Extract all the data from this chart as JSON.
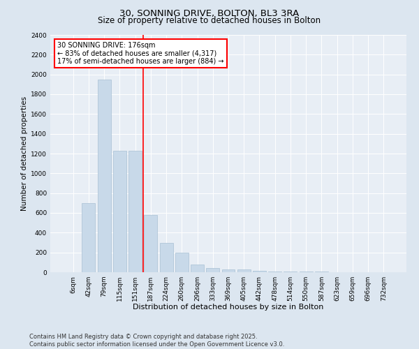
{
  "title": "30, SONNING DRIVE, BOLTON, BL3 3RA",
  "subtitle": "Size of property relative to detached houses in Bolton",
  "xlabel": "Distribution of detached houses by size in Bolton",
  "ylabel": "Number of detached properties",
  "categories": [
    "6sqm",
    "42sqm",
    "79sqm",
    "115sqm",
    "151sqm",
    "187sqm",
    "224sqm",
    "260sqm",
    "296sqm",
    "333sqm",
    "369sqm",
    "405sqm",
    "442sqm",
    "478sqm",
    "514sqm",
    "550sqm",
    "587sqm",
    "623sqm",
    "659sqm",
    "696sqm",
    "732sqm"
  ],
  "values": [
    0,
    700,
    1950,
    1230,
    1230,
    580,
    300,
    200,
    80,
    45,
    30,
    25,
    15,
    10,
    8,
    5,
    4,
    2,
    2,
    1,
    0
  ],
  "bar_color": "#c8d9e9",
  "bar_edge_color": "#a8c0d4",
  "vline_x": 5,
  "vline_color": "red",
  "annotation_text": "30 SONNING DRIVE: 176sqm\n← 83% of detached houses are smaller (4,317)\n17% of semi-detached houses are larger (884) →",
  "annotation_box_color": "white",
  "annotation_box_edge_color": "red",
  "ylim": [
    0,
    2400
  ],
  "yticks": [
    0,
    200,
    400,
    600,
    800,
    1000,
    1200,
    1400,
    1600,
    1800,
    2000,
    2200,
    2400
  ],
  "footnote": "Contains HM Land Registry data © Crown copyright and database right 2025.\nContains public sector information licensed under the Open Government Licence v3.0.",
  "background_color": "#dce6f0",
  "plot_bg_color": "#e8eef5",
  "title_fontsize": 9.5,
  "subtitle_fontsize": 8.5,
  "xlabel_fontsize": 8,
  "ylabel_fontsize": 7.5,
  "tick_fontsize": 6.5,
  "footnote_fontsize": 6,
  "ann_fontsize": 7
}
